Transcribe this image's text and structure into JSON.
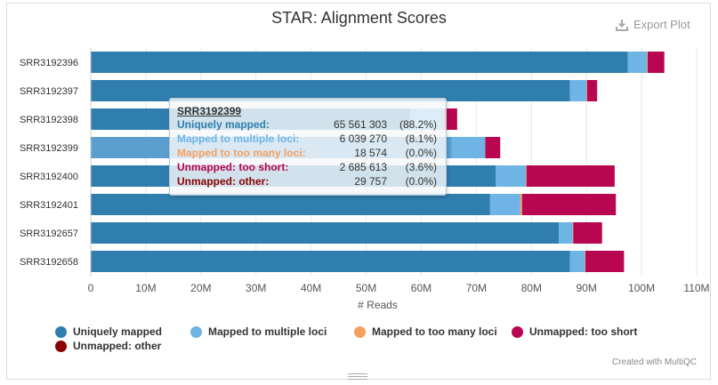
{
  "title": "STAR: Alignment Scores",
  "export_label": "Export Plot",
  "credit": "Created with MultiQC",
  "chart_data": {
    "type": "bar",
    "orientation": "horizontal",
    "stacked": true,
    "categories": [
      "SRR3192396",
      "SRR3192397",
      "SRR3192398",
      "SRR3192399",
      "SRR3192400",
      "SRR3192401",
      "SRR3192657",
      "SRR3192658"
    ],
    "series": [
      {
        "name": "Uniquely mapped",
        "color": "#2f7ead",
        "values": [
          97.5,
          87.0,
          58.0,
          65.561303,
          73.5,
          72.5,
          85.0,
          87.0
        ]
      },
      {
        "name": "Mapped to multiple loci",
        "color": "#6eb5e6",
        "values": [
          3.5,
          3.0,
          6.0,
          6.03927,
          5.5,
          5.5,
          2.5,
          2.7
        ]
      },
      {
        "name": "Mapped to too many loci",
        "color": "#f5a05f",
        "values": [
          0.1,
          0.1,
          0.2,
          0.018574,
          0.1,
          0.3,
          0.1,
          0.1
        ]
      },
      {
        "name": "Unmapped: too short",
        "color": "#b80650",
        "values": [
          3.0,
          1.8,
          2.3,
          2.685613,
          16.0,
          17.0,
          5.2,
          7.0
        ]
      },
      {
        "name": "Unmapped: other",
        "color": "#8b0000",
        "values": [
          0.03,
          0.03,
          0.03,
          0.029757,
          0.03,
          0.03,
          0.03,
          0.03
        ]
      }
    ],
    "xlabel": "# Reads",
    "xlim": [
      0,
      110
    ],
    "x_ticks": [
      "0",
      "10M",
      "20M",
      "30M",
      "40M",
      "50M",
      "60M",
      "70M",
      "80M",
      "90M",
      "100M",
      "110M"
    ],
    "grid": true,
    "legend_position": "bottom"
  },
  "tooltip": {
    "sample": "SRR3192399",
    "rows": [
      {
        "label": "Uniquely mapped:",
        "value": "65 561 303",
        "pct": "(88.2%)",
        "color": "#2f7ead"
      },
      {
        "label": "Mapped to multiple loci:",
        "value": "6 039 270",
        "pct": "(8.1%)",
        "color": "#6eb5e6"
      },
      {
        "label": "Mapped to too many loci:",
        "value": "18 574",
        "pct": "(0.0%)",
        "color": "#f5a05f"
      },
      {
        "label": "Unmapped: too short:",
        "value": "2 685 613",
        "pct": "(3.6%)",
        "color": "#b80650"
      },
      {
        "label": "Unmapped: other:",
        "value": "29 757",
        "pct": "(0.0%)",
        "color": "#8b0000"
      }
    ]
  }
}
